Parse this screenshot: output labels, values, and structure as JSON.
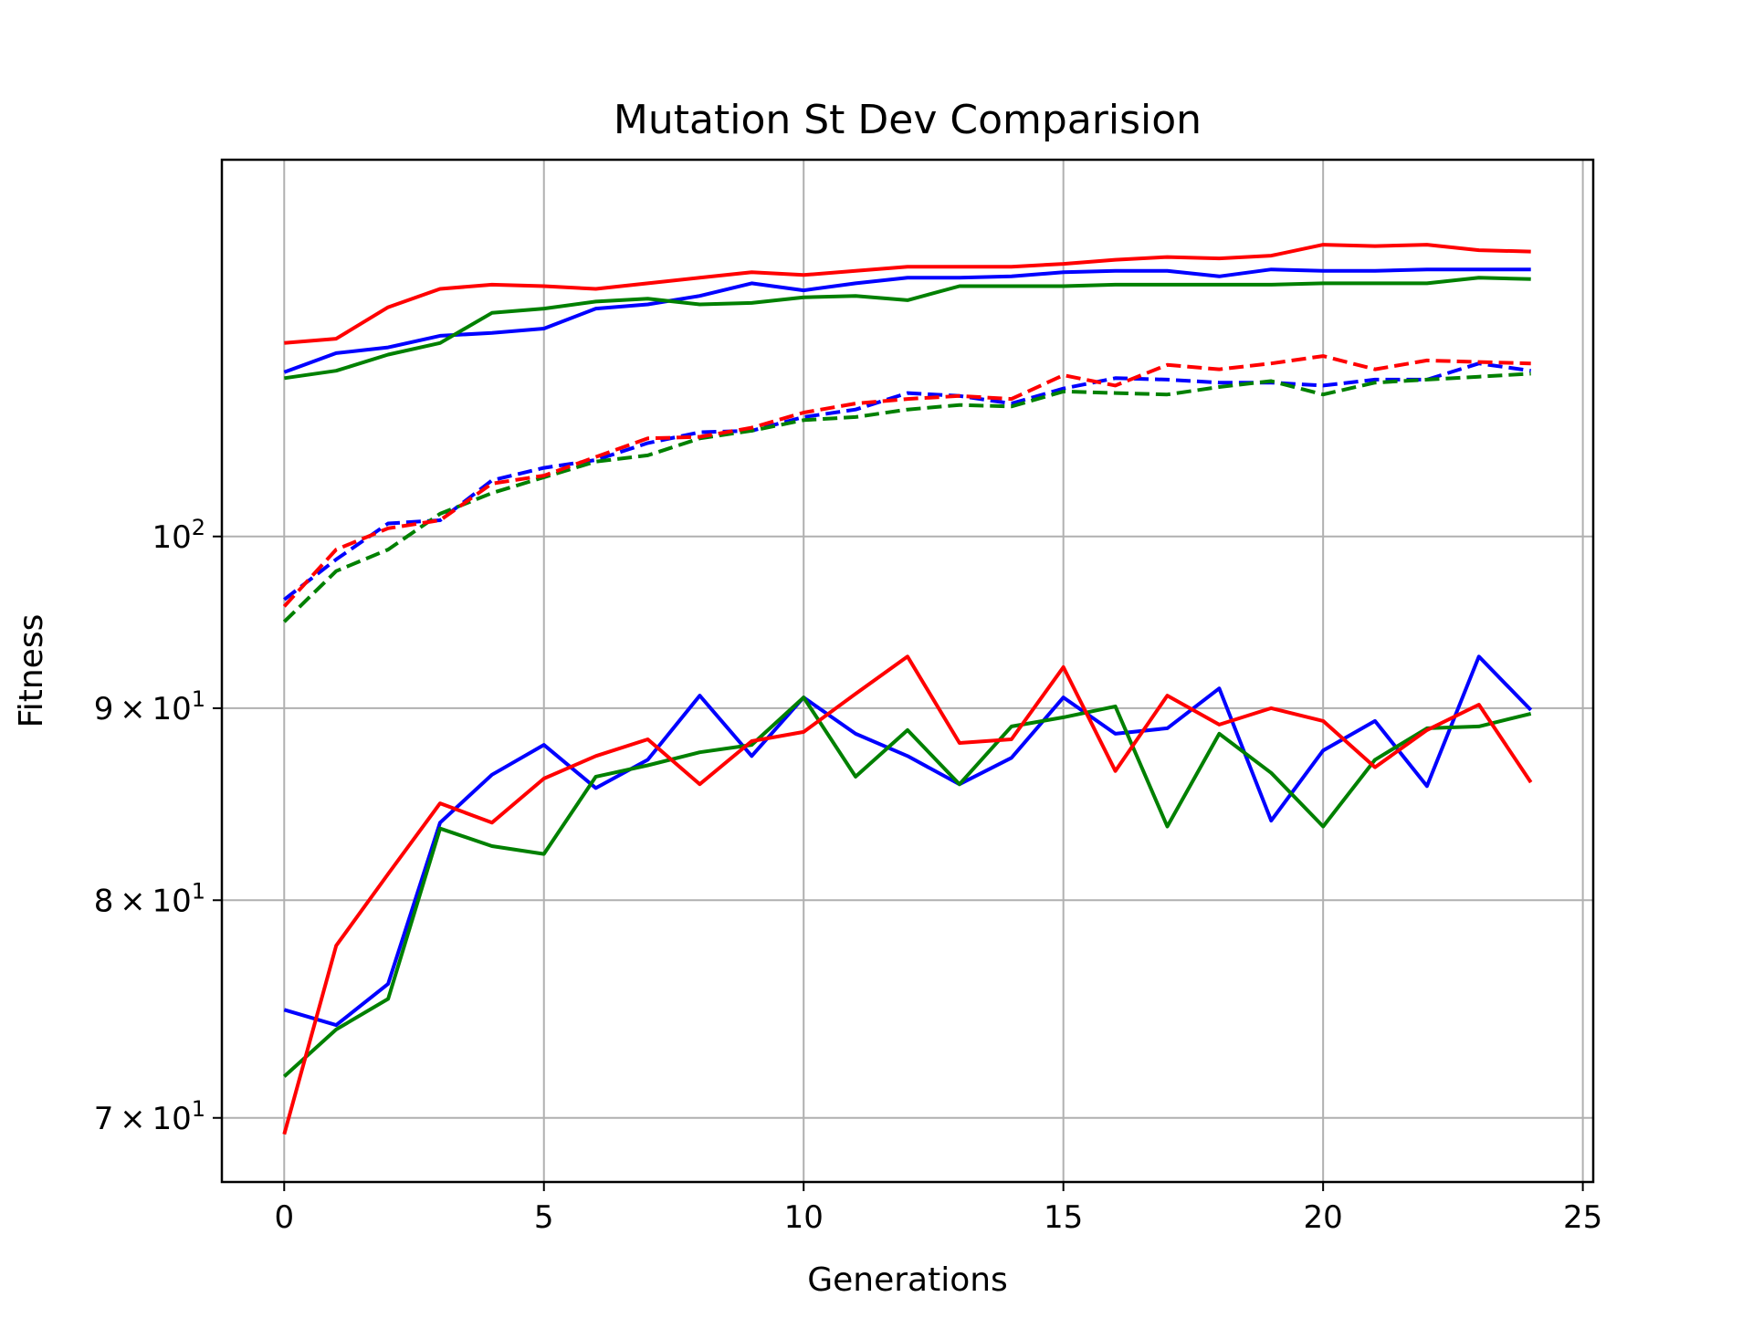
{
  "chart_data": {
    "type": "line",
    "title": "Mutation St Dev Comparision",
    "xlabel": "Generations",
    "ylabel": "Fitness",
    "yscale": "log",
    "xlim": [
      -1.2,
      25.2
    ],
    "ylim": [
      67.3,
      126.0
    ],
    "grid": true,
    "legend": "none",
    "x_ticks": [
      {
        "value": 0,
        "label": "0"
      },
      {
        "value": 5,
        "label": "5"
      },
      {
        "value": 10,
        "label": "10"
      },
      {
        "value": 15,
        "label": "15"
      },
      {
        "value": 20,
        "label": "20"
      },
      {
        "value": 25,
        "label": "25"
      }
    ],
    "y_ticks": [
      {
        "value": 70,
        "base": "7",
        "exp": "1",
        "times": true
      },
      {
        "value": 80,
        "base": "8",
        "exp": "1",
        "times": true
      },
      {
        "value": 90,
        "base": "9",
        "exp": "1",
        "times": true
      },
      {
        "value": 100,
        "base": "10",
        "exp": "2",
        "times": false
      }
    ],
    "x": [
      0,
      1,
      2,
      3,
      4,
      5,
      6,
      7,
      8,
      9,
      10,
      11,
      12,
      13,
      14,
      15,
      16,
      17,
      18,
      19,
      20,
      21,
      22,
      23,
      24
    ],
    "series": [
      {
        "color": "#0000ff",
        "dash": "solid",
        "values": [
          110.6,
          111.9,
          112.3,
          113.1,
          113.3,
          113.6,
          115.0,
          115.3,
          115.9,
          116.8,
          116.3,
          116.8,
          117.2,
          117.2,
          117.3,
          117.6,
          117.7,
          117.7,
          117.3,
          117.8,
          117.7,
          117.7,
          117.8,
          117.8,
          117.8
        ]
      },
      {
        "color": "#008000",
        "dash": "solid",
        "values": [
          110.2,
          110.7,
          111.8,
          112.6,
          114.7,
          115.0,
          115.5,
          115.7,
          115.3,
          115.4,
          115.8,
          115.9,
          115.6,
          116.6,
          116.6,
          116.6,
          116.7,
          116.7,
          116.7,
          116.7,
          116.8,
          116.8,
          116.8,
          117.2,
          117.1
        ]
      },
      {
        "color": "#ff0000",
        "dash": "solid",
        "values": [
          112.6,
          112.9,
          115.1,
          116.4,
          116.7,
          116.6,
          116.4,
          116.8,
          117.2,
          117.6,
          117.4,
          117.7,
          118.0,
          118.0,
          118.0,
          118.2,
          118.5,
          118.7,
          118.6,
          118.8,
          119.6,
          119.5,
          119.6,
          119.2,
          119.1
        ]
      },
      {
        "color": "#0000ff",
        "dash": "dashed",
        "values": [
          96.2,
          98.6,
          100.8,
          101.0,
          103.5,
          104.3,
          104.8,
          105.9,
          106.6,
          106.7,
          107.6,
          108.1,
          109.2,
          109.0,
          108.5,
          109.5,
          110.2,
          110.1,
          109.9,
          109.9,
          109.7,
          110.1,
          110.1,
          111.2,
          110.7
        ]
      },
      {
        "color": "#008000",
        "dash": "dashed",
        "values": [
          94.9,
          97.9,
          99.2,
          101.4,
          102.7,
          103.7,
          104.7,
          105.1,
          106.2,
          106.7,
          107.4,
          107.6,
          108.1,
          108.4,
          108.3,
          109.3,
          109.2,
          109.1,
          109.6,
          110.0,
          109.1,
          109.9,
          110.1,
          110.3,
          110.5
        ]
      },
      {
        "color": "#ff0000",
        "dash": "dashed",
        "values": [
          95.8,
          99.2,
          100.5,
          101.0,
          103.3,
          103.8,
          105.0,
          106.2,
          106.3,
          106.9,
          107.9,
          108.5,
          108.8,
          109.0,
          108.8,
          110.4,
          109.7,
          111.1,
          110.8,
          111.2,
          111.7,
          110.8,
          111.4,
          111.3,
          111.2
        ]
      },
      {
        "color": "#0000ff",
        "dash": "solid",
        "values": [
          74.8,
          74.1,
          76.0,
          83.9,
          86.4,
          88.0,
          85.7,
          87.2,
          90.7,
          87.4,
          90.6,
          88.6,
          87.4,
          85.9,
          87.3,
          90.6,
          88.6,
          88.9,
          91.1,
          84.0,
          87.7,
          89.3,
          85.8,
          92.9,
          89.9
        ]
      },
      {
        "color": "#008000",
        "dash": "solid",
        "values": [
          71.8,
          73.9,
          75.3,
          83.6,
          82.7,
          82.3,
          86.3,
          86.9,
          87.6,
          88.0,
          90.6,
          86.3,
          88.8,
          85.9,
          89.0,
          89.5,
          90.1,
          83.7,
          88.6,
          86.5,
          83.7,
          87.2,
          88.9,
          89.0,
          89.7
        ]
      },
      {
        "color": "#ff0000",
        "dash": "solid",
        "values": [
          69.3,
          77.8,
          81.3,
          84.9,
          83.9,
          86.2,
          87.4,
          88.3,
          85.9,
          88.2,
          88.7,
          90.8,
          92.9,
          88.1,
          88.3,
          92.3,
          86.6,
          90.7,
          89.1,
          90.0,
          89.3,
          86.8,
          88.8,
          90.2,
          86.0
        ]
      }
    ]
  }
}
